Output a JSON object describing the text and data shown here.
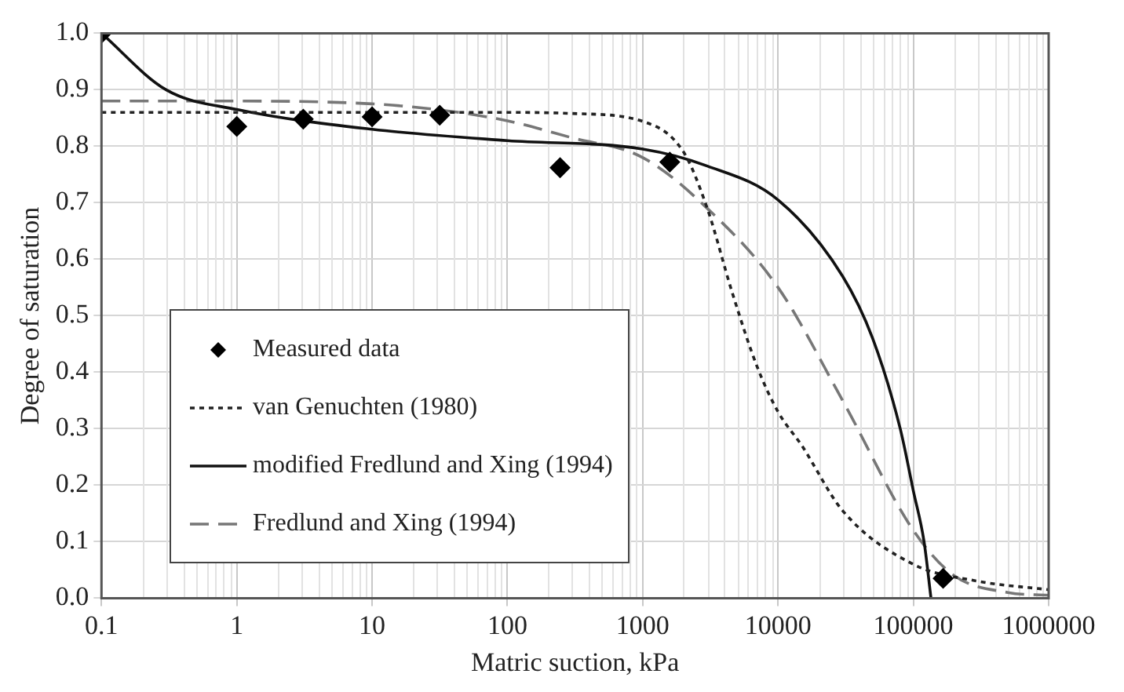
{
  "chart_data": {
    "type": "line",
    "xlabel": "Matric suction, kPa",
    "ylabel": "Degree of saturation",
    "log": "x",
    "grid": true,
    "legend": "bottom left",
    "xlim": [
      0.1,
      1000000
    ],
    "xticks": [
      0.1,
      1,
      10,
      100,
      1000,
      10000,
      100000,
      1000000
    ],
    "ylim": [
      0,
      1
    ],
    "yticks": [
      {
        "value": 0,
        "label": "0.0"
      },
      0.1,
      0.2,
      0.3,
      0.4,
      0.5,
      0.6,
      0.7,
      0.8,
      0.9,
      {
        "value": 1,
        "label": "1.0"
      }
    ],
    "series": [
      {
        "name": "Measured data",
        "type": "scatter",
        "marker": "diamond",
        "color": "#000000",
        "x": [
          0.1,
          1,
          3.1,
          10,
          31.6,
          245,
          1585,
          166000
        ],
        "values": [
          1.0,
          0.835,
          0.848,
          0.852,
          0.855,
          0.762,
          0.772,
          0.035
        ]
      },
      {
        "name": "van Genuchten (1980)",
        "type": "line",
        "line_style": "dotted",
        "color": "#222222",
        "x": [
          0.1,
          1,
          10,
          100,
          300,
          1000,
          2000,
          3000,
          4600,
          7000,
          10000,
          15000,
          30000,
          100000,
          300000,
          1000000
        ],
        "values": [
          0.86,
          0.86,
          0.86,
          0.86,
          0.858,
          0.844,
          0.79,
          0.69,
          0.54,
          0.41,
          0.33,
          0.27,
          0.155,
          0.06,
          0.03,
          0.015
        ]
      },
      {
        "name": "modified Fredlund and Xing (1994)",
        "type": "line",
        "line_style": "solid",
        "color": "#111111",
        "x": [
          0.1,
          0.3,
          1,
          10,
          100,
          1000,
          3000,
          10000,
          30000,
          50000,
          80000,
          100000,
          120000,
          135000
        ],
        "values": [
          1.0,
          0.9,
          0.865,
          0.83,
          0.81,
          0.795,
          0.765,
          0.705,
          0.57,
          0.46,
          0.3,
          0.19,
          0.1,
          0.0
        ]
      },
      {
        "name": "Fredlund and Xing (1994)",
        "type": "line",
        "line_style": "dashed",
        "color": "#777777",
        "x": [
          0.1,
          1,
          10,
          30,
          100,
          300,
          1000,
          3000,
          10000,
          30000,
          100000,
          200000,
          500000,
          1000000
        ],
        "values": [
          0.88,
          0.88,
          0.875,
          0.865,
          0.845,
          0.815,
          0.78,
          0.69,
          0.55,
          0.35,
          0.12,
          0.04,
          0.01,
          0.005
        ]
      }
    ]
  }
}
